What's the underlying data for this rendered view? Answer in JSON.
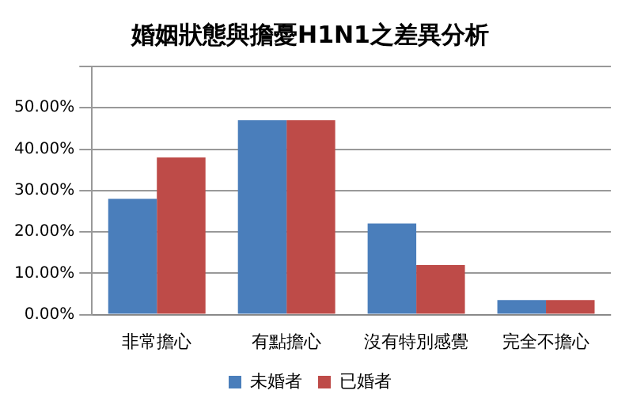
{
  "chart_data": {
    "type": "bar",
    "title": "婚姻狀態與擔憂H1N1之差異分析",
    "categories": [
      "非常擔心",
      "有點擔心",
      "沒有特別感覺",
      "完全不擔心"
    ],
    "series": [
      {
        "name": "未婚者",
        "color": "#4a7ebb",
        "values": [
          28,
          47,
          22,
          3.5
        ]
      },
      {
        "name": "已婚者",
        "color": "#be4b48",
        "values": [
          38,
          47,
          12,
          3.5
        ]
      }
    ],
    "ylim": [
      0,
      60
    ],
    "yticks": [
      {
        "value": 0,
        "label": "0.00%"
      },
      {
        "value": 10,
        "label": "10.00%"
      },
      {
        "value": 20,
        "label": "20.00%"
      },
      {
        "value": 30,
        "label": "30.00%"
      },
      {
        "value": 40,
        "label": "40.00%"
      },
      {
        "value": 50,
        "label": "50.00%"
      },
      {
        "value": 60,
        "label": null
      }
    ],
    "grid": "y",
    "legend": "bottom"
  }
}
